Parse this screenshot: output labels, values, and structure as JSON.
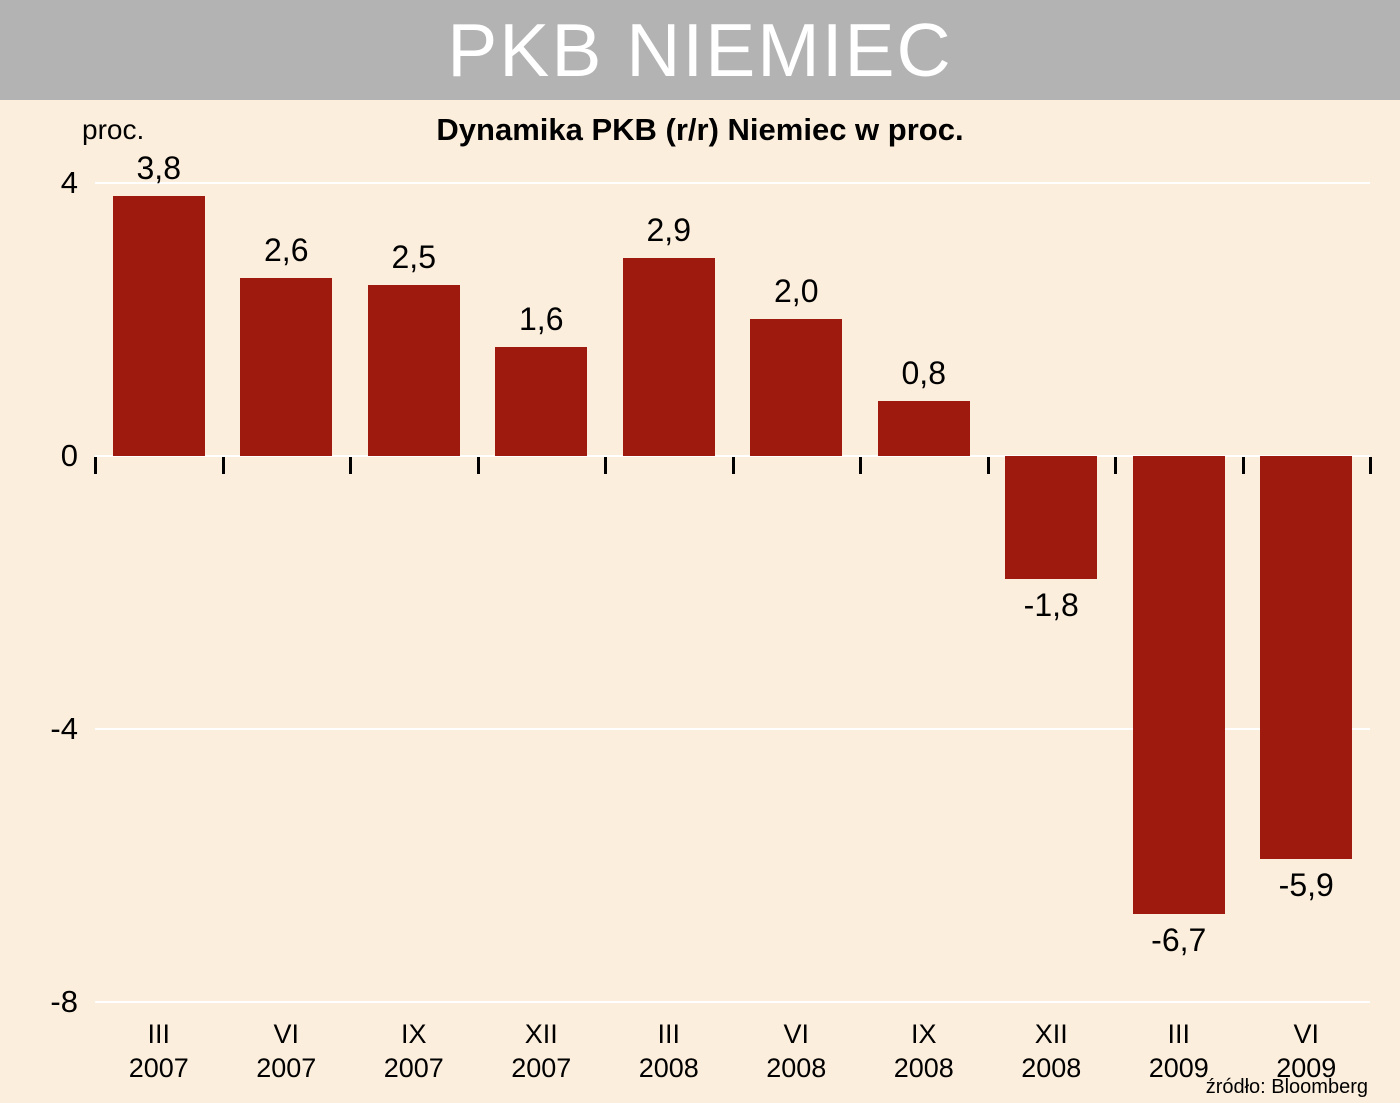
{
  "header": {
    "title": "PKB NIEMIEC"
  },
  "axis": {
    "unit_label": "proc."
  },
  "footer": {
    "source": "źródło: Bloomberg"
  },
  "colors": {
    "background": "#fceedc",
    "header_bg": "#b3b3b3",
    "header_text": "#ffffff",
    "bar": "#9e1a0e",
    "gridline": "#ffffff",
    "text": "#000000"
  },
  "chart_data": {
    "type": "bar",
    "title": "Dynamika PKB (r/r) Niemiec w proc.",
    "xlabel": "",
    "ylabel": "proc.",
    "ylim": [
      -8,
      4
    ],
    "yticks": [
      4,
      0,
      -4,
      -8
    ],
    "grid": true,
    "legend": "none",
    "source": "źródło: Bloomberg",
    "categories": [
      {
        "quarter": "III",
        "year": "2007"
      },
      {
        "quarter": "VI",
        "year": "2007"
      },
      {
        "quarter": "IX",
        "year": "2007"
      },
      {
        "quarter": "XII",
        "year": "2007"
      },
      {
        "quarter": "III",
        "year": "2008"
      },
      {
        "quarter": "VI",
        "year": "2008"
      },
      {
        "quarter": "IX",
        "year": "2008"
      },
      {
        "quarter": "XII",
        "year": "2008"
      },
      {
        "quarter": "III",
        "year": "2009"
      },
      {
        "quarter": "VI",
        "year": "2009"
      }
    ],
    "values": [
      3.8,
      2.6,
      2.5,
      1.6,
      2.9,
      2.0,
      0.8,
      -1.8,
      -6.7,
      -5.9
    ],
    "value_labels": [
      "3,8",
      "2,6",
      "2,5",
      "1,6",
      "2,9",
      "2,0",
      "0,8",
      "-1,8",
      "-6,7",
      "-5,9"
    ]
  }
}
